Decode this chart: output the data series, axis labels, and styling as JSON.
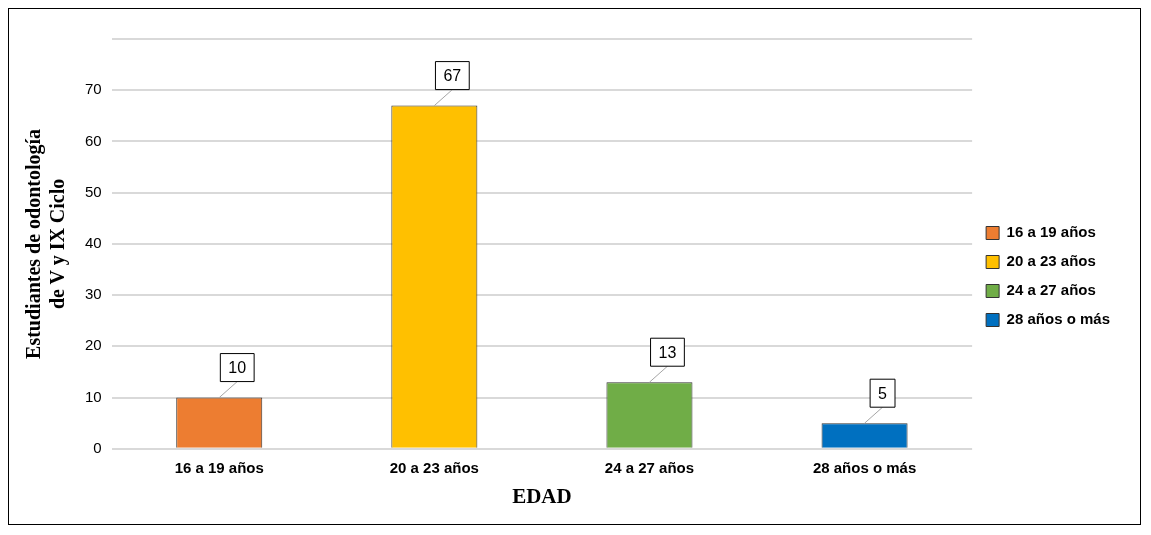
{
  "chart_data": {
    "type": "bar",
    "xlabel": "EDAD",
    "ylabel": "Estudiantes de odontología de V y IX Ciclo",
    "categories": [
      "16 a 19 años",
      "20 a 23 años",
      "24 a 27 años",
      "28 años o más"
    ],
    "series": [
      {
        "name": "16 a 19 años",
        "color": "#ed7d31",
        "values": [
          10,
          null,
          null,
          null
        ]
      },
      {
        "name": "20 a 23 años",
        "color": "#ffc000",
        "values": [
          null,
          67,
          null,
          null
        ]
      },
      {
        "name": "24 a 27 años",
        "color": "#70ad47",
        "values": [
          null,
          null,
          13,
          null
        ]
      },
      {
        "name": "28 años o más",
        "color": "#0070c0",
        "values": [
          null,
          null,
          null,
          5
        ]
      }
    ],
    "ylim": [
      0,
      80
    ],
    "yticks": [
      0,
      10,
      20,
      30,
      40,
      50,
      60,
      70,
      {
        "value": 80,
        "label": null
      }
    ],
    "grid": "y",
    "legend": "right",
    "data_labels": true
  }
}
